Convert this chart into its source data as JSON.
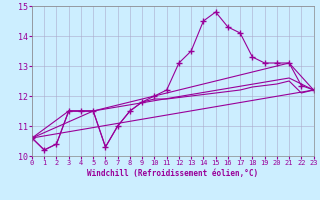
{
  "xlabel": "Windchill (Refroidissement éolien,°C)",
  "xlim": [
    0,
    23
  ],
  "ylim": [
    10,
    15
  ],
  "yticks": [
    10,
    11,
    12,
    13,
    14,
    15
  ],
  "xticks": [
    0,
    1,
    2,
    3,
    4,
    5,
    6,
    7,
    8,
    9,
    10,
    11,
    12,
    13,
    14,
    15,
    16,
    17,
    18,
    19,
    20,
    21,
    22,
    23
  ],
  "bg_color": "#cceeff",
  "line_color": "#990099",
  "line1_x": [
    0,
    1,
    2,
    3,
    4,
    5,
    6,
    7,
    8,
    9,
    10,
    11,
    12,
    13,
    14,
    15,
    16,
    17,
    18,
    19,
    20,
    21,
    22,
    23
  ],
  "line1_y": [
    10.6,
    10.2,
    10.4,
    11.5,
    11.5,
    11.5,
    10.3,
    11.0,
    11.5,
    11.8,
    12.0,
    12.2,
    13.1,
    13.5,
    14.5,
    14.8,
    14.3,
    14.1,
    13.3,
    13.1,
    13.1,
    13.1,
    12.35,
    12.2
  ],
  "line2_x": [
    0,
    1,
    2,
    3,
    4,
    5,
    6,
    7,
    8,
    9,
    10,
    11,
    12,
    13,
    14,
    15,
    16,
    17,
    18,
    19,
    20,
    21,
    22,
    23
  ],
  "line2_y": [
    10.6,
    10.2,
    10.4,
    11.5,
    11.5,
    11.5,
    10.3,
    11.0,
    11.5,
    11.8,
    11.9,
    11.9,
    11.95,
    12.0,
    12.05,
    12.1,
    12.15,
    12.2,
    12.3,
    12.35,
    12.4,
    12.5,
    12.1,
    12.2
  ],
  "line3_x": [
    0,
    23
  ],
  "line3_y": [
    10.6,
    12.2
  ],
  "line4_x": [
    0,
    3,
    5,
    21,
    23
  ],
  "line4_y": [
    10.6,
    11.5,
    11.5,
    13.1,
    12.2
  ],
  "line5_x": [
    0,
    5,
    21,
    23
  ],
  "line5_y": [
    10.6,
    11.5,
    12.6,
    12.2
  ]
}
